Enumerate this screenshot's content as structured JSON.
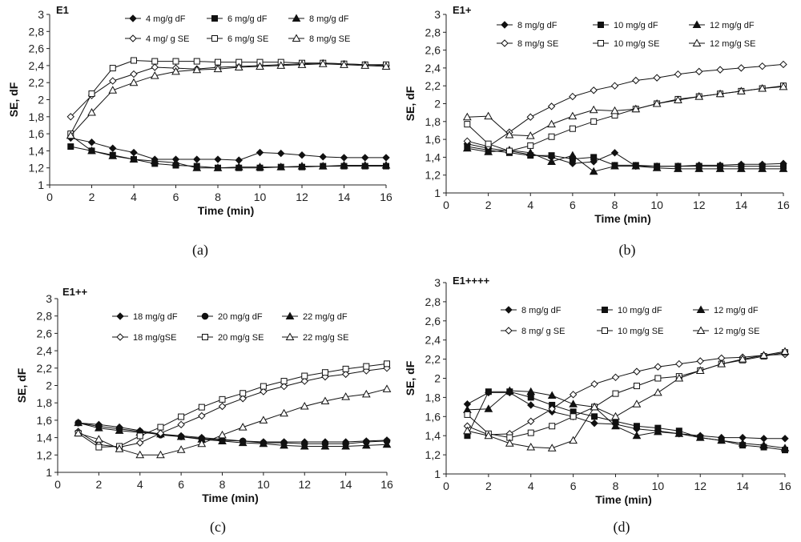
{
  "figure": {
    "captions": [
      "(a)",
      "(b)",
      "(c)",
      "(d)"
    ]
  },
  "chart_data": [
    {
      "type": "line",
      "title": "E1",
      "caption": "(a)",
      "xlabel": "Time (min)",
      "ylabel": "SE, dF",
      "xlim": [
        0,
        16
      ],
      "ylim": [
        1,
        3
      ],
      "xticks": [
        "0",
        "2",
        "4",
        "6",
        "8",
        "10",
        "12",
        "14",
        "16"
      ],
      "yticks": [
        "1",
        "1,2",
        "1,4",
        "1,6",
        "1,8",
        "2",
        "2,2",
        "2,4",
        "2,6",
        "2,8",
        "3"
      ],
      "x": [
        1,
        2,
        3,
        4,
        5,
        6,
        7,
        8,
        9,
        10,
        11,
        12,
        13,
        14,
        15,
        16
      ],
      "series": [
        {
          "name": "4 mg/g dF",
          "marker": "diamond",
          "filled": true,
          "values": [
            1.55,
            1.5,
            1.43,
            1.38,
            1.3,
            1.3,
            1.3,
            1.3,
            1.29,
            1.38,
            1.37,
            1.35,
            1.33,
            1.32,
            1.32,
            1.32
          ]
        },
        {
          "name": "6 mg/g dF",
          "marker": "square",
          "filled": true,
          "values": [
            1.45,
            1.4,
            1.35,
            1.3,
            1.25,
            1.23,
            1.22,
            1.2,
            1.2,
            1.2,
            1.21,
            1.21,
            1.22,
            1.22,
            1.22,
            1.22
          ]
        },
        {
          "name": "8 mg/g dF",
          "marker": "triangle",
          "filled": true,
          "values": [
            1.58,
            1.4,
            1.34,
            1.3,
            1.28,
            1.26,
            1.2,
            1.2,
            1.21,
            1.21,
            1.21,
            1.22,
            1.22,
            1.23,
            1.23,
            1.23
          ]
        },
        {
          "name": "4 mg/ g SE",
          "marker": "diamond",
          "filled": false,
          "values": [
            1.8,
            2.05,
            2.22,
            2.3,
            2.38,
            2.37,
            2.36,
            2.38,
            2.39,
            2.4,
            2.41,
            2.42,
            2.43,
            2.42,
            2.41,
            2.4
          ]
        },
        {
          "name": "6 mg/g SE",
          "marker": "square",
          "filled": false,
          "values": [
            1.6,
            2.07,
            2.37,
            2.46,
            2.45,
            2.45,
            2.45,
            2.44,
            2.44,
            2.44,
            2.44,
            2.43,
            2.43,
            2.42,
            2.41,
            2.41
          ]
        },
        {
          "name": "8 mg/g SE",
          "marker": "triangle",
          "filled": false,
          "values": [
            1.58,
            1.85,
            2.11,
            2.2,
            2.28,
            2.33,
            2.35,
            2.36,
            2.38,
            2.39,
            2.4,
            2.41,
            2.42,
            2.41,
            2.4,
            2.39
          ]
        }
      ]
    },
    {
      "type": "line",
      "title": "E1+",
      "caption": "(b)",
      "xlabel": "Time (min)",
      "ylabel": "SE, dF",
      "xlim": [
        0,
        16
      ],
      "ylim": [
        1,
        3
      ],
      "xticks": [
        "0",
        "2",
        "4",
        "6",
        "8",
        "10",
        "12",
        "14",
        "16"
      ],
      "yticks": [
        "1",
        "1,2",
        "1,4",
        "1,6",
        "1,8",
        "2",
        "2,2",
        "2,4",
        "2,6",
        "2,8",
        "3"
      ],
      "x": [
        1,
        2,
        3,
        4,
        5,
        6,
        7,
        8,
        9,
        10,
        11,
        12,
        13,
        14,
        15,
        16
      ],
      "series": [
        {
          "name": "8  mg/g dF",
          "marker": "diamond",
          "filled": true,
          "values": [
            1.55,
            1.5,
            1.47,
            1.43,
            1.4,
            1.33,
            1.35,
            1.45,
            1.3,
            1.3,
            1.3,
            1.31,
            1.31,
            1.32,
            1.32,
            1.33
          ]
        },
        {
          "name": "10 mg/g dF",
          "marker": "square",
          "filled": true,
          "values": [
            1.52,
            1.48,
            1.45,
            1.42,
            1.42,
            1.38,
            1.4,
            1.31,
            1.31,
            1.3,
            1.3,
            1.3,
            1.3,
            1.3,
            1.3,
            1.3
          ]
        },
        {
          "name": "12 mg/g dF",
          "marker": "triangle",
          "filled": true,
          "values": [
            1.5,
            1.46,
            1.48,
            1.45,
            1.35,
            1.42,
            1.24,
            1.3,
            1.3,
            1.28,
            1.27,
            1.27,
            1.27,
            1.27,
            1.27,
            1.27
          ]
        },
        {
          "name": "8 mg/g SE",
          "marker": "diamond",
          "filled": false,
          "values": [
            1.58,
            1.52,
            1.68,
            1.85,
            1.97,
            2.08,
            2.15,
            2.2,
            2.26,
            2.29,
            2.33,
            2.36,
            2.38,
            2.4,
            2.42,
            2.44
          ]
        },
        {
          "name": "10 mg/g SE",
          "marker": "square",
          "filled": false,
          "values": [
            1.77,
            1.55,
            1.47,
            1.53,
            1.63,
            1.72,
            1.8,
            1.87,
            1.94,
            2.0,
            2.05,
            2.08,
            2.11,
            2.14,
            2.17,
            2.2
          ]
        },
        {
          "name": "12 mg/g SE",
          "marker": "triangle",
          "filled": false,
          "values": [
            1.85,
            1.86,
            1.65,
            1.64,
            1.77,
            1.86,
            1.93,
            1.92,
            1.94,
            2.0,
            2.04,
            2.08,
            2.11,
            2.14,
            2.17,
            2.19
          ]
        }
      ]
    },
    {
      "type": "line",
      "title": "E1++",
      "caption": "(c)",
      "xlabel": "Time (min)",
      "ylabel": "SE, dF",
      "xlim": [
        0,
        16
      ],
      "ylim": [
        1,
        3
      ],
      "xticks": [
        "0",
        "2",
        "4",
        "6",
        "8",
        "10",
        "12",
        "14",
        "16"
      ],
      "yticks": [
        "1",
        "1,2",
        "1,4",
        "1,6",
        "1,8",
        "2",
        "2,2",
        "2,4",
        "2,6",
        "2,8",
        "3"
      ],
      "x": [
        1,
        2,
        3,
        4,
        5,
        6,
        7,
        8,
        9,
        10,
        11,
        12,
        13,
        14,
        15,
        16
      ],
      "series": [
        {
          "name": "18 mg/g dF",
          "marker": "diamond",
          "filled": true,
          "values": [
            1.57,
            1.55,
            1.52,
            1.48,
            1.44,
            1.42,
            1.4,
            1.38,
            1.36,
            1.35,
            1.35,
            1.35,
            1.35,
            1.35,
            1.36,
            1.37
          ]
        },
        {
          "name": "20 mg/g dF",
          "marker": "circle",
          "filled": true,
          "values": [
            1.57,
            1.53,
            1.5,
            1.47,
            1.43,
            1.41,
            1.39,
            1.37,
            1.36,
            1.34,
            1.34,
            1.33,
            1.33,
            1.33,
            1.35,
            1.36
          ]
        },
        {
          "name": "22 mg/g dF",
          "marker": "triangle",
          "filled": true,
          "values": [
            1.57,
            1.51,
            1.48,
            1.46,
            1.44,
            1.41,
            1.38,
            1.36,
            1.34,
            1.33,
            1.31,
            1.3,
            1.3,
            1.3,
            1.31,
            1.32
          ]
        },
        {
          "name": "18 mg/gSE",
          "marker": "diamond",
          "filled": false,
          "values": [
            1.47,
            1.32,
            1.29,
            1.34,
            1.45,
            1.55,
            1.65,
            1.76,
            1.85,
            1.93,
            1.99,
            2.05,
            2.1,
            2.13,
            2.17,
            2.2
          ]
        },
        {
          "name": "20 mg/g SE",
          "marker": "square",
          "filled": false,
          "values": [
            1.45,
            1.29,
            1.3,
            1.42,
            1.52,
            1.64,
            1.75,
            1.84,
            1.91,
            1.99,
            2.05,
            2.11,
            2.15,
            2.19,
            2.22,
            2.25
          ]
        },
        {
          "name": "22 mg/g SE",
          "marker": "triangle",
          "filled": false,
          "values": [
            1.45,
            1.38,
            1.27,
            1.2,
            1.2,
            1.26,
            1.33,
            1.43,
            1.52,
            1.6,
            1.68,
            1.76,
            1.82,
            1.87,
            1.9,
            1.96
          ]
        }
      ]
    },
    {
      "type": "line",
      "title": "E1++++",
      "caption": "(d)",
      "xlabel": "Time (min)",
      "ylabel": "SE, dF",
      "xlim": [
        0,
        16
      ],
      "ylim": [
        1,
        3
      ],
      "xticks": [
        "0",
        "2",
        "4",
        "6",
        "8",
        "10",
        "12",
        "14",
        "16"
      ],
      "yticks": [
        "1",
        "1,2",
        "1,4",
        "1,6",
        "1,8",
        "2",
        "2,2",
        "2,4",
        "2,6",
        "2,8",
        "3"
      ],
      "x": [
        1,
        2,
        3,
        4,
        5,
        6,
        7,
        8,
        9,
        10,
        11,
        12,
        13,
        14,
        15,
        16
      ],
      "series": [
        {
          "name": "8 mg/g dF",
          "marker": "diamond",
          "filled": true,
          "values": [
            1.73,
            1.85,
            1.85,
            1.72,
            1.65,
            1.6,
            1.53,
            1.52,
            1.47,
            1.45,
            1.42,
            1.4,
            1.38,
            1.38,
            1.37,
            1.37
          ]
        },
        {
          "name": "10 mg/g dF",
          "marker": "square",
          "filled": true,
          "values": [
            1.4,
            1.86,
            1.86,
            1.8,
            1.72,
            1.65,
            1.6,
            1.55,
            1.5,
            1.48,
            1.45,
            1.38,
            1.35,
            1.3,
            1.28,
            1.25
          ]
        },
        {
          "name": "12 mg/g dF",
          "marker": "triangle",
          "filled": true,
          "values": [
            1.67,
            1.68,
            1.87,
            1.86,
            1.82,
            1.73,
            1.7,
            1.5,
            1.4,
            1.44,
            1.42,
            1.38,
            1.35,
            1.32,
            1.3,
            1.27
          ]
        },
        {
          "name": "8 mg/ g SE",
          "marker": "diamond",
          "filled": false,
          "values": [
            1.5,
            1.41,
            1.42,
            1.55,
            1.68,
            1.83,
            1.94,
            2.01,
            2.07,
            2.12,
            2.15,
            2.18,
            2.21,
            2.22,
            2.24,
            2.25
          ]
        },
        {
          "name": "10 mg/g SE",
          "marker": "square",
          "filled": false,
          "values": [
            1.62,
            1.42,
            1.38,
            1.43,
            1.5,
            1.6,
            1.7,
            1.84,
            1.92,
            2.0,
            2.02,
            2.08,
            2.15,
            2.19,
            2.23,
            2.27
          ]
        },
        {
          "name": "12 mg/g SE",
          "marker": "triangle",
          "filled": false,
          "values": [
            1.45,
            1.4,
            1.32,
            1.28,
            1.27,
            1.35,
            1.7,
            1.6,
            1.73,
            1.85,
            2.0,
            2.08,
            2.15,
            2.2,
            2.24,
            2.28
          ]
        }
      ]
    }
  ]
}
